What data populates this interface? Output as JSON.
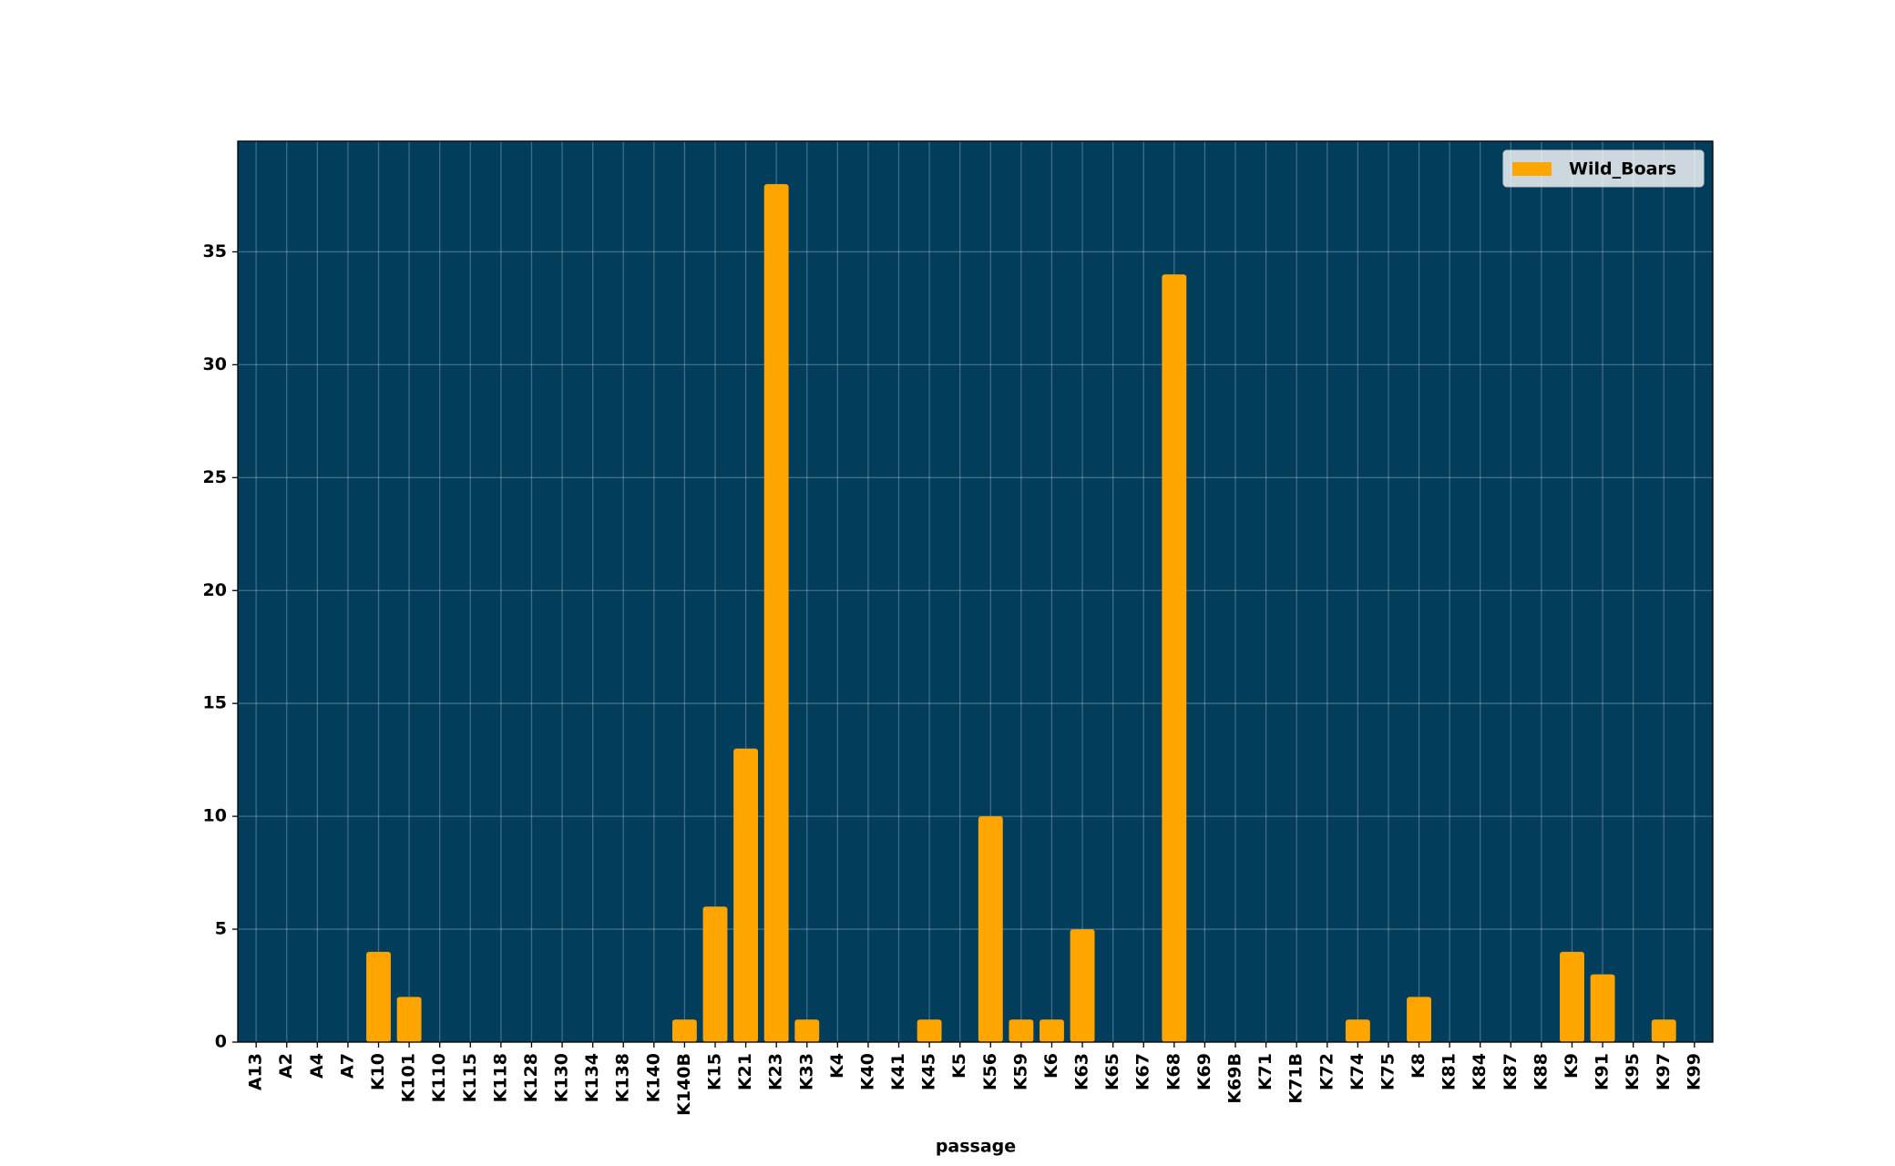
{
  "chart_data": {
    "type": "bar",
    "x_label": "passage",
    "categories": [
      "A13",
      "A2",
      "A4",
      "A7",
      "K10",
      "K101",
      "K110",
      "K115",
      "K118",
      "K128",
      "K130",
      "K134",
      "K138",
      "K140",
      "K140B",
      "K15",
      "K21",
      "K23",
      "K33",
      "K4",
      "K40",
      "K41",
      "K45",
      "K5",
      "K56",
      "K59",
      "K6",
      "K63",
      "K65",
      "K67",
      "K68",
      "K69",
      "K69B",
      "K71",
      "K71B",
      "K72",
      "K74",
      "K75",
      "K8",
      "K81",
      "K84",
      "K87",
      "K88",
      "K9",
      "K91",
      "K95",
      "K97",
      "K99"
    ],
    "series": [
      {
        "name": "Wild_Boars",
        "color": "#ffa500",
        "values": [
          0,
          0,
          0,
          0,
          4,
          2,
          0,
          0,
          0,
          0,
          0,
          0,
          0,
          0,
          1,
          6,
          13,
          38,
          1,
          0,
          0,
          0,
          1,
          0,
          10,
          1,
          1,
          5,
          0,
          0,
          34,
          0,
          0,
          0,
          0,
          0,
          1,
          0,
          2,
          0,
          0,
          0,
          0,
          4,
          3,
          0,
          1,
          0
        ]
      }
    ],
    "ylim": [
      0,
      39.9
    ],
    "yticks": [
      0,
      5,
      10,
      15,
      20,
      25,
      30,
      35
    ],
    "grid": true,
    "legend": "upper right",
    "background": "#023d5c"
  }
}
